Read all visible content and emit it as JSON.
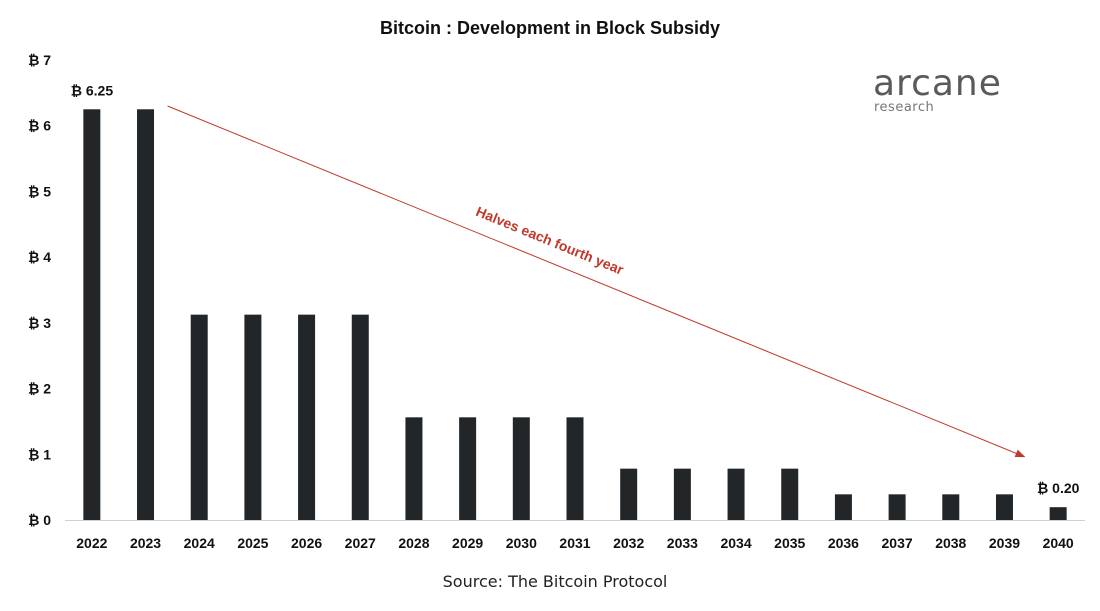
{
  "chart_data": {
    "type": "bar",
    "title": "Bitcoin : Development in Block Subsidy",
    "categories": [
      "2022",
      "2023",
      "2024",
      "2025",
      "2026",
      "2027",
      "2028",
      "2029",
      "2030",
      "2031",
      "2032",
      "2033",
      "2034",
      "2035",
      "2036",
      "2037",
      "2038",
      "2039",
      "2040"
    ],
    "values": [
      6.25,
      6.25,
      3.125,
      3.125,
      3.125,
      3.125,
      1.5625,
      1.5625,
      1.5625,
      1.5625,
      0.78125,
      0.78125,
      0.78125,
      0.78125,
      0.390625,
      0.390625,
      0.390625,
      0.390625,
      0.195
    ],
    "ylim": [
      0,
      7
    ],
    "yticks": [
      0,
      1,
      2,
      3,
      4,
      5,
      6,
      7
    ],
    "ytick_labels": [
      "₿ 0",
      "₿ 1",
      "₿ 2",
      "₿ 3",
      "₿ 4",
      "₿ 5",
      "₿ 6",
      "₿ 7"
    ],
    "data_labels": [
      {
        "category": "2022",
        "text": "₿ 6.25"
      },
      {
        "category": "2040",
        "text": "₿ 0.20"
      }
    ],
    "annotation": {
      "text": "Halves each fourth year",
      "from_category": "2023",
      "from_value": 6.3,
      "to_category": "2039",
      "to_value": 0.75,
      "color": "#c0392b"
    },
    "bar_color": "#222629",
    "grid": false,
    "legend": "none"
  },
  "logo": {
    "main": "arcane",
    "sub": "research"
  },
  "source": "Source: The Bitcoin Protocol"
}
